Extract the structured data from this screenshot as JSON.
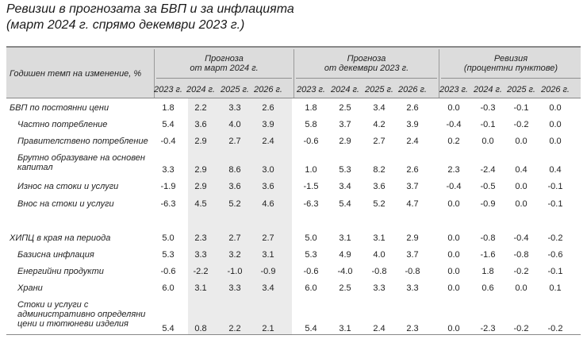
{
  "title": {
    "line1": "Ревизии в прогнозата за БВП и за инфлацията",
    "line2": "(март 2024 г. спрямо декември 2023 г.)"
  },
  "header": {
    "row_label": "Годишен темп на изменение, %",
    "groups": [
      {
        "line1": "Прогноза",
        "line2": "от март 2024 г."
      },
      {
        "line1": "Прогноза",
        "line2": "от декември 2023 г."
      },
      {
        "line1": "Ревизия",
        "line2": "(процентни пунктове)"
      }
    ],
    "years": [
      "2023 г.",
      "2024 г.",
      "2025 г.",
      "2026 г.",
      "2023 г.",
      "2024 г.",
      "2025 г.",
      "2026 г.",
      "2023 г.",
      "2024 г.",
      "2025 г.",
      "2026 г."
    ]
  },
  "rows": [
    {
      "label": [
        "БВП по постоянни цени"
      ],
      "values": [
        "1.8",
        "2.2",
        "3.3",
        "2.6",
        "1.8",
        "2.5",
        "3.4",
        "2.6",
        "0.0",
        "-0.3",
        "-0.1",
        "0.0"
      ]
    },
    {
      "label": [
        "Частно потребление"
      ],
      "values": [
        "5.4",
        "3.6",
        "4.0",
        "3.9",
        "5.8",
        "3.7",
        "4.2",
        "3.9",
        "-0.4",
        "-0.1",
        "-0.2",
        "0.0"
      ]
    },
    {
      "label": [
        "Правителствено потребление"
      ],
      "values": [
        "-0.4",
        "2.9",
        "2.7",
        "2.4",
        "-0.6",
        "2.9",
        "2.7",
        "2.4",
        "0.2",
        "0.0",
        "0.0",
        "0.0"
      ]
    },
    {
      "label": [
        "Брутно образуване на основен",
        "капитал"
      ],
      "values": [
        "3.3",
        "2.9",
        "8.6",
        "3.0",
        "1.0",
        "5.3",
        "8.2",
        "2.6",
        "2.3",
        "-2.4",
        "0.4",
        "0.4"
      ]
    },
    {
      "label": [
        "Износ на стоки и услуги"
      ],
      "values": [
        "-1.9",
        "2.9",
        "3.6",
        "3.6",
        "-1.5",
        "3.4",
        "3.6",
        "3.7",
        "-0.4",
        "-0.5",
        "0.0",
        "-0.1"
      ]
    },
    {
      "label": [
        "Внос на стоки и услуги"
      ],
      "values": [
        "-6.3",
        "4.5",
        "5.2",
        "4.6",
        "-6.3",
        "5.4",
        "5.2",
        "4.7",
        "0.0",
        "-0.9",
        "0.0",
        "-0.1"
      ]
    },
    {
      "label": [
        "ХИПЦ в края на периода"
      ],
      "values": [
        "5.0",
        "2.3",
        "2.7",
        "2.7",
        "5.0",
        "3.1",
        "3.1",
        "2.9",
        "0.0",
        "-0.8",
        "-0.4",
        "-0.2"
      ]
    },
    {
      "label": [
        "Базисна инфлация"
      ],
      "values": [
        "5.3",
        "3.3",
        "3.2",
        "3.1",
        "5.3",
        "4.9",
        "4.0",
        "3.7",
        "0.0",
        "-1.6",
        "-0.8",
        "-0.6"
      ]
    },
    {
      "label": [
        "Енергийни продукти"
      ],
      "values": [
        "-0.6",
        "-2.2",
        "-1.0",
        "-0.9",
        "-0.6",
        "-4.0",
        "-0.8",
        "-0.8",
        "0.0",
        "1.8",
        "-0.2",
        "-0.1"
      ]
    },
    {
      "label": [
        "Храни"
      ],
      "values": [
        "6.0",
        "3.1",
        "3.3",
        "3.4",
        "6.0",
        "2.5",
        "3.3",
        "3.3",
        "0.0",
        "0.6",
        "0.0",
        "0.1"
      ]
    },
    {
      "label": [
        "Стоки и услуги с",
        "административно определяни",
        "цени и тютюневи изделия"
      ],
      "values": [
        "5.4",
        "0.8",
        "2.2",
        "2.1",
        "5.4",
        "3.1",
        "2.4",
        "2.3",
        "0.0",
        "-2.3",
        "-0.2",
        "-0.2"
      ]
    }
  ]
}
